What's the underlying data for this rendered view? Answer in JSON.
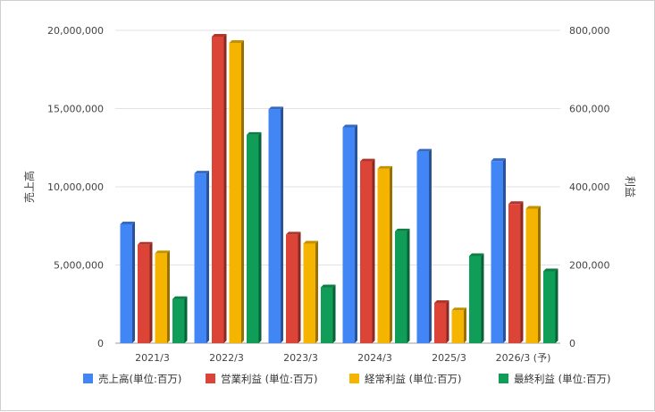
{
  "chart_data": {
    "type": "bar",
    "title": "",
    "xlabel": "",
    "ylabel_left": "売上高",
    "ylabel_right": "利益",
    "categories": [
      "2021/3",
      "2022/3",
      "2023/3",
      "2024/3",
      "2025/3",
      "2026/3 (予)"
    ],
    "left_axis": {
      "ylim": [
        0,
        20000000
      ],
      "ticks": [
        0,
        5000000,
        10000000,
        15000000,
        20000000
      ],
      "tick_labels": [
        "0",
        "5,000,000",
        "10,000,000",
        "15,000,000",
        "20,000,000"
      ]
    },
    "right_axis": {
      "ylim": [
        0,
        800000
      ],
      "ticks": [
        0,
        200000,
        400000,
        600000,
        800000
      ],
      "tick_labels": [
        "0",
        "200,000",
        "400,000",
        "600,000",
        "800,000"
      ]
    },
    "grid": true,
    "legend_position": "bottom",
    "series": [
      {
        "name": "売上高(単位:百万)",
        "axis": "left",
        "color": "#4285f4",
        "values": [
          7600000,
          10850000,
          14950000,
          13800000,
          12250000,
          11650000
        ]
      },
      {
        "name": "営業利益 (単位:百万)",
        "axis": "right",
        "color": "#db4437",
        "values": [
          252000,
          784000,
          278000,
          465000,
          103000,
          356000
        ]
      },
      {
        "name": "経常利益 (単位:百万)",
        "axis": "right",
        "color": "#f4b400",
        "values": [
          230000,
          768000,
          255000,
          446000,
          84000,
          344000
        ]
      },
      {
        "name": "最終利益 (単位:百万)",
        "axis": "right",
        "color": "#0f9d58",
        "values": [
          113000,
          533000,
          143000,
          286000,
          223000,
          184000
        ]
      }
    ]
  }
}
